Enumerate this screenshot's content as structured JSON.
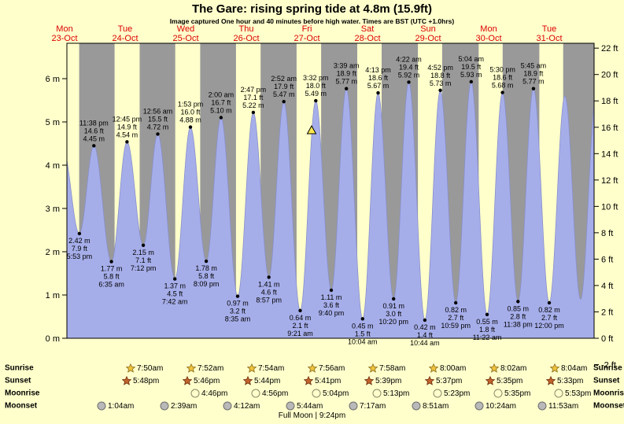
{
  "title": "The Gare: rising  spring tide at 4.8m (15.9ft)",
  "subtitle": "Image captured One hour and 40 minutes before high water. Times are BST (UTC +1.0hrs)",
  "colors": {
    "page_bg": "#ffffcc",
    "day_band": "#ffffcc",
    "night_band": "#999999",
    "tide_fill": "#a6aeea",
    "tide_stroke": "#8890cc",
    "day_label": "#dd0000",
    "marker_fill": "#ffe94e",
    "marker_stroke": "#000000"
  },
  "chart_data": {
    "type": "area",
    "title": "The Gare tide curve",
    "x_axis": "days (Mon 23-Oct to Tue 31-Oct)",
    "days": [
      {
        "name": "Mon",
        "date": "23-Oct"
      },
      {
        "name": "Tue",
        "date": "24-Oct"
      },
      {
        "name": "Wed",
        "date": "25-Oct"
      },
      {
        "name": "Thu",
        "date": "26-Oct"
      },
      {
        "name": "Fri",
        "date": "27-Oct"
      },
      {
        "name": "Sat",
        "date": "28-Oct"
      },
      {
        "name": "Sun",
        "date": "29-Oct"
      },
      {
        "name": "Mon",
        "date": "30-Oct"
      },
      {
        "name": "Tue",
        "date": "31-Oct"
      }
    ],
    "y_axis_left": {
      "unit": "m",
      "ticks": [
        "0 m",
        "1 m",
        "2 m",
        "3 m",
        "4 m",
        "5 m",
        "6 m"
      ]
    },
    "y_axis_right": {
      "unit": "ft",
      "ticks": [
        "-2 ft",
        "0 ft",
        "2 ft",
        "4 ft",
        "6 ft",
        "8 ft",
        "10 ft",
        "12 ft",
        "14 ft",
        "16 ft",
        "18 ft",
        "20 ft",
        "22 ft"
      ]
    },
    "tide_events": [
      {
        "day_index": 0,
        "kind": "low",
        "time": "5:53 pm",
        "height_m": 2.42,
        "height_ft": 7.9
      },
      {
        "day_index": 0,
        "kind": "high",
        "time": "11:38 pm",
        "height_m": 4.45,
        "height_ft": 14.6
      },
      {
        "day_index": 1,
        "kind": "low",
        "time": "6:35 am",
        "height_m": 1.77,
        "height_ft": 5.8
      },
      {
        "day_index": 1,
        "kind": "high",
        "time": "12:45 pm",
        "height_m": 4.54,
        "height_ft": 14.9
      },
      {
        "day_index": 1,
        "kind": "low",
        "time": "7:12 pm",
        "height_m": 2.15,
        "height_ft": 7.1
      },
      {
        "day_index": 2,
        "kind": "high",
        "time": "12:56 am",
        "height_m": 4.72,
        "height_ft": 15.5
      },
      {
        "day_index": 2,
        "kind": "low",
        "time": "7:42 am",
        "height_m": 1.37,
        "height_ft": 4.5
      },
      {
        "day_index": 2,
        "kind": "high",
        "time": "1:53 pm",
        "height_m": 4.88,
        "height_ft": 16.0
      },
      {
        "day_index": 2,
        "kind": "low",
        "time": "8:09 pm",
        "height_m": 1.78,
        "height_ft": 5.8
      },
      {
        "day_index": 3,
        "kind": "high",
        "time": "2:00 am",
        "height_m": 5.1,
        "height_ft": 16.7
      },
      {
        "day_index": 3,
        "kind": "low",
        "time": "8:35 am",
        "height_m": 0.97,
        "height_ft": 3.2
      },
      {
        "day_index": 3,
        "kind": "high",
        "time": "2:47 pm",
        "height_m": 5.22,
        "height_ft": 17.1
      },
      {
        "day_index": 3,
        "kind": "low",
        "time": "8:57 pm",
        "height_m": 1.41,
        "height_ft": 4.6
      },
      {
        "day_index": 4,
        "kind": "high",
        "time": "2:52 am",
        "height_m": 5.47,
        "height_ft": 17.9
      },
      {
        "day_index": 4,
        "kind": "low",
        "time": "9:21 am",
        "height_m": 0.64,
        "height_ft": 2.1
      },
      {
        "day_index": 4,
        "kind": "high",
        "time": "3:32 pm",
        "height_m": 5.49,
        "height_ft": 18.0
      },
      {
        "day_index": 4,
        "kind": "low",
        "time": "9:40 pm",
        "height_m": 1.11,
        "height_ft": 3.6
      },
      {
        "day_index": 5,
        "kind": "high",
        "time": "3:39 am",
        "height_m": 5.77,
        "height_ft": 18.9
      },
      {
        "day_index": 5,
        "kind": "low",
        "time": "10:04 am",
        "height_m": 0.45,
        "height_ft": 1.5
      },
      {
        "day_index": 5,
        "kind": "high",
        "time": "4:13 pm",
        "height_m": 5.67,
        "height_ft": 18.6
      },
      {
        "day_index": 5,
        "kind": "low",
        "time": "10:20 pm",
        "height_m": 0.91,
        "height_ft": 3.0
      },
      {
        "day_index": 6,
        "kind": "high",
        "time": "4:22 am",
        "height_m": 5.92,
        "height_ft": 19.4
      },
      {
        "day_index": 6,
        "kind": "low",
        "time": "10:44 am",
        "height_m": 0.42,
        "height_ft": 1.4
      },
      {
        "day_index": 6,
        "kind": "high",
        "time": "4:52 pm",
        "height_m": 5.73,
        "height_ft": 18.8
      },
      {
        "day_index": 6,
        "kind": "low",
        "time": "10:59 pm",
        "height_m": 0.82,
        "height_ft": 2.7
      },
      {
        "day_index": 7,
        "kind": "high",
        "time": "5:04 am",
        "height_m": 5.93,
        "height_ft": 19.5
      },
      {
        "day_index": 7,
        "kind": "low",
        "time": "11:22 am",
        "height_m": 0.55,
        "height_ft": 1.8
      },
      {
        "day_index": 7,
        "kind": "high",
        "time": "5:30 pm",
        "height_m": 5.68,
        "height_ft": 18.6
      },
      {
        "day_index": 7,
        "kind": "low",
        "time": "11:38 pm",
        "height_m": 0.85,
        "height_ft": 2.8
      },
      {
        "day_index": 8,
        "kind": "high",
        "time": "5:45 am",
        "height_m": 5.77,
        "height_ft": 18.9
      },
      {
        "day_index": 8,
        "kind": "low",
        "time": "12:00 pm",
        "height_m": 0.82,
        "height_ft": 2.7
      }
    ],
    "current_marker": {
      "day_index": 4,
      "time": "1:52 pm",
      "height_m": 4.8,
      "symbol": "triangle"
    }
  },
  "almanac": {
    "rows": [
      {
        "key": "sunrise",
        "label": "Sunrise",
        "icon": "sunrise-star",
        "entries": [
          {
            "day_index": 1,
            "time": "7:50am"
          },
          {
            "day_index": 2,
            "time": "7:52am"
          },
          {
            "day_index": 3,
            "time": "7:54am"
          },
          {
            "day_index": 4,
            "time": "7:56am"
          },
          {
            "day_index": 5,
            "time": "7:58am"
          },
          {
            "day_index": 6,
            "time": "8:00am"
          },
          {
            "day_index": 7,
            "time": "8:02am"
          },
          {
            "day_index": 8,
            "time": "8:04am"
          }
        ]
      },
      {
        "key": "sunset",
        "label": "Sunset",
        "icon": "sunset-star",
        "entries": [
          {
            "day_index": 0,
            "time": "5:48pm"
          },
          {
            "day_index": 1,
            "time": "5:46pm"
          },
          {
            "day_index": 2,
            "time": "5:44pm"
          },
          {
            "day_index": 3,
            "time": "5:41pm"
          },
          {
            "day_index": 4,
            "time": "5:39pm"
          },
          {
            "day_index": 5,
            "time": "5:37pm"
          },
          {
            "day_index": 6,
            "time": "5:35pm"
          },
          {
            "day_index": 7,
            "time": "5:33pm"
          }
        ]
      },
      {
        "key": "moonrise",
        "label": "Moonrise",
        "icon": "moonrise-moon",
        "entries": [
          {
            "day_index": 2,
            "time": "4:46pm"
          },
          {
            "day_index": 3,
            "time": "4:56pm"
          },
          {
            "day_index": 4,
            "time": "5:04pm"
          },
          {
            "day_index": 5,
            "time": "5:13pm"
          },
          {
            "day_index": 6,
            "time": "5:23pm"
          },
          {
            "day_index": 7,
            "time": "5:35pm"
          },
          {
            "day_index": 8,
            "time": "5:53pm"
          }
        ]
      },
      {
        "key": "moonset",
        "label": "Moonset",
        "icon": "moonset-moon",
        "entries": [
          {
            "day_index": 1,
            "time": "1:04am"
          },
          {
            "day_index": 2,
            "time": "2:39am"
          },
          {
            "day_index": 3,
            "time": "4:12am"
          },
          {
            "day_index": 4,
            "time": "5:44am"
          },
          {
            "day_index": 5,
            "time": "7:17am"
          },
          {
            "day_index": 6,
            "time": "8:51am"
          },
          {
            "day_index": 7,
            "time": "10:24am"
          },
          {
            "day_index": 8,
            "time": "11:53am"
          }
        ]
      }
    ],
    "footer": "Full Moon | 9:24pm"
  }
}
